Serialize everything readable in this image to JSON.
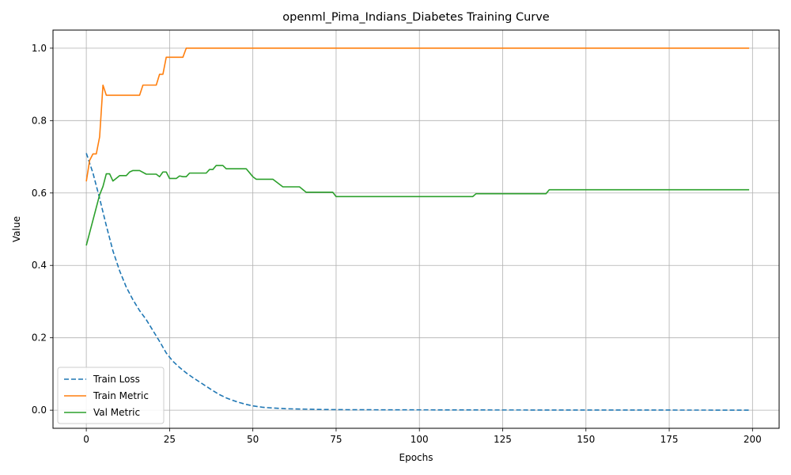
{
  "chart_data": {
    "type": "line",
    "title": "openml_Pima_Indians_Diabetes Training Curve",
    "xlabel": "Epochs",
    "ylabel": "Value",
    "xlim": [
      -10,
      208
    ],
    "ylim": [
      -0.05,
      1.05
    ],
    "xticks": [
      0,
      25,
      50,
      75,
      100,
      125,
      150,
      175,
      200
    ],
    "yticks": [
      0.0,
      0.2,
      0.4,
      0.6,
      0.8,
      1.0
    ],
    "xtick_labels": [
      "0",
      "25",
      "50",
      "75",
      "100",
      "125",
      "150",
      "175",
      "200"
    ],
    "ytick_labels": [
      "0.0",
      "0.2",
      "0.4",
      "0.6",
      "0.8",
      "1.0"
    ],
    "grid": true,
    "legend_position": "lower-left",
    "series": [
      {
        "name": "Train Loss",
        "color": "#1f77b4",
        "dash": "dashed",
        "points": [
          [
            0,
            0.71
          ],
          [
            2,
            0.655
          ],
          [
            4,
            0.585
          ],
          [
            6,
            0.51
          ],
          [
            8,
            0.44
          ],
          [
            10,
            0.385
          ],
          [
            12,
            0.34
          ],
          [
            14,
            0.305
          ],
          [
            16,
            0.275
          ],
          [
            18,
            0.25
          ],
          [
            20,
            0.22
          ],
          [
            22,
            0.19
          ],
          [
            24,
            0.158
          ],
          [
            26,
            0.135
          ],
          [
            28,
            0.118
          ],
          [
            30,
            0.103
          ],
          [
            32,
            0.09
          ],
          [
            34,
            0.078
          ],
          [
            36,
            0.066
          ],
          [
            38,
            0.054
          ],
          [
            40,
            0.043
          ],
          [
            42,
            0.034
          ],
          [
            44,
            0.027
          ],
          [
            46,
            0.021
          ],
          [
            48,
            0.016
          ],
          [
            50,
            0.012
          ],
          [
            53,
            0.008
          ],
          [
            56,
            0.006
          ],
          [
            60,
            0.004
          ],
          [
            65,
            0.003
          ],
          [
            70,
            0.002
          ],
          [
            75,
            0.0015
          ],
          [
            90,
            0.001
          ],
          [
            120,
            0.0006
          ],
          [
            160,
            0.0004
          ],
          [
            199,
            0.0002
          ]
        ]
      },
      {
        "name": "Train Metric",
        "color": "#ff7f0e",
        "dash": "solid",
        "points": [
          [
            0,
            0.632
          ],
          [
            1,
            0.69
          ],
          [
            2,
            0.708
          ],
          [
            3,
            0.708
          ],
          [
            4,
            0.755
          ],
          [
            5,
            0.898
          ],
          [
            6,
            0.87
          ],
          [
            16,
            0.87
          ],
          [
            17,
            0.898
          ],
          [
            21,
            0.898
          ],
          [
            22,
            0.928
          ],
          [
            23,
            0.928
          ],
          [
            24,
            0.975
          ],
          [
            29,
            0.975
          ],
          [
            30,
            1.0
          ],
          [
            199,
            1.0
          ]
        ]
      },
      {
        "name": "Val Metric",
        "color": "#2ca02c",
        "dash": "solid",
        "points": [
          [
            0,
            0.455
          ],
          [
            4,
            0.595
          ],
          [
            5,
            0.618
          ],
          [
            6,
            0.653
          ],
          [
            7,
            0.653
          ],
          [
            8,
            0.633
          ],
          [
            10,
            0.648
          ],
          [
            12,
            0.648
          ],
          [
            13,
            0.658
          ],
          [
            14,
            0.662
          ],
          [
            16,
            0.662
          ],
          [
            18,
            0.652
          ],
          [
            21,
            0.652
          ],
          [
            22,
            0.645
          ],
          [
            23,
            0.658
          ],
          [
            24,
            0.658
          ],
          [
            25,
            0.64
          ],
          [
            27,
            0.64
          ],
          [
            28,
            0.647
          ],
          [
            29,
            0.645
          ],
          [
            30,
            0.645
          ],
          [
            31,
            0.655
          ],
          [
            36,
            0.655
          ],
          [
            37,
            0.665
          ],
          [
            38,
            0.665
          ],
          [
            39,
            0.676
          ],
          [
            41,
            0.676
          ],
          [
            42,
            0.667
          ],
          [
            48,
            0.667
          ],
          [
            50,
            0.645
          ],
          [
            51,
            0.638
          ],
          [
            56,
            0.638
          ],
          [
            59,
            0.617
          ],
          [
            64,
            0.617
          ],
          [
            66,
            0.602
          ],
          [
            74,
            0.602
          ],
          [
            75,
            0.59
          ],
          [
            116,
            0.59
          ],
          [
            117,
            0.598
          ],
          [
            138,
            0.598
          ],
          [
            139,
            0.609
          ],
          [
            199,
            0.609
          ]
        ]
      }
    ]
  }
}
